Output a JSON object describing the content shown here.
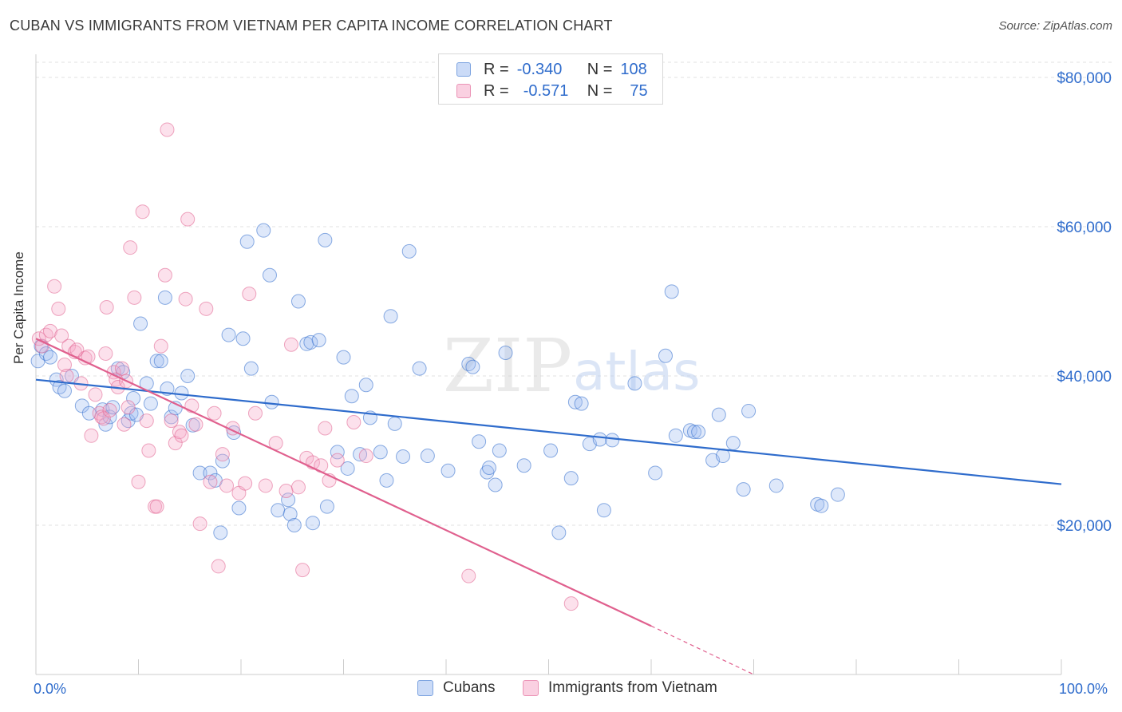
{
  "title": "CUBAN VS IMMIGRANTS FROM VIETNAM PER CAPITA INCOME CORRELATION CHART",
  "source": "Source: ZipAtlas.com",
  "watermark": {
    "zip": "ZIP",
    "atlas": "atlas"
  },
  "legend": {
    "r_label": "R =",
    "n_label": "N =",
    "rows": [
      {
        "name": "Cubans",
        "r": "-0.340",
        "n": "108",
        "color": "#2f6ccc"
      },
      {
        "name": "Immigrants from Vietnam",
        "r": "-0.571",
        "n": "75",
        "color": "#e0608e"
      }
    ]
  },
  "chart_data": {
    "type": "scatter",
    "title": "CUBAN VS IMMIGRANTS FROM VIETNAM PER CAPITA INCOME CORRELATION CHART",
    "xlabel": "",
    "ylabel": "Per Capita Income",
    "xlim": [
      0,
      100
    ],
    "ylim": [
      0,
      80000
    ],
    "x_tick_labels": [
      "0.0%",
      "100.0%"
    ],
    "y_ticks": [
      20000,
      40000,
      60000,
      80000
    ],
    "y_tick_labels": [
      "$20,000",
      "$40,000",
      "$60,000",
      "$80,000"
    ],
    "legend_position": "bottom",
    "series": [
      {
        "name": "Cubans",
        "color": "#2f6ccc",
        "fill": "rgba(160,190,240,0.35)",
        "trend": {
          "x0": 0,
          "y0": 39500,
          "x1": 100,
          "y1": 25500
        },
        "points": [
          [
            0.2,
            42000
          ],
          [
            0.5,
            44000
          ],
          [
            1,
            43000
          ],
          [
            1.4,
            42500
          ],
          [
            2,
            39500
          ],
          [
            2.3,
            38500
          ],
          [
            2.8,
            38000
          ],
          [
            3.5,
            40000
          ],
          [
            4.5,
            36000
          ],
          [
            5.2,
            35000
          ],
          [
            6.5,
            35500
          ],
          [
            6.8,
            33500
          ],
          [
            7.2,
            34500
          ],
          [
            7.5,
            35800
          ],
          [
            8,
            41000
          ],
          [
            8.5,
            40500
          ],
          [
            9,
            34000
          ],
          [
            9.3,
            35000
          ],
          [
            9.5,
            37000
          ],
          [
            9.8,
            34800
          ],
          [
            10.2,
            47000
          ],
          [
            10.8,
            39000
          ],
          [
            11.2,
            36300
          ],
          [
            11.8,
            42000
          ],
          [
            12.2,
            42000
          ],
          [
            12.6,
            50500
          ],
          [
            12.8,
            38300
          ],
          [
            13.2,
            34500
          ],
          [
            13.6,
            35700
          ],
          [
            14.2,
            37700
          ],
          [
            14.8,
            40000
          ],
          [
            15.3,
            33400
          ],
          [
            16,
            27000
          ],
          [
            17,
            27000
          ],
          [
            17.5,
            26000
          ],
          [
            18,
            19000
          ],
          [
            18.2,
            28600
          ],
          [
            18.8,
            45500
          ],
          [
            19.3,
            32400
          ],
          [
            19.8,
            22300
          ],
          [
            20.2,
            45000
          ],
          [
            20.6,
            58000
          ],
          [
            21,
            41000
          ],
          [
            22.2,
            59500
          ],
          [
            22.8,
            53500
          ],
          [
            23,
            36500
          ],
          [
            23.6,
            22000
          ],
          [
            24.6,
            23400
          ],
          [
            24.8,
            21500
          ],
          [
            25.2,
            20000
          ],
          [
            25.6,
            50000
          ],
          [
            26.4,
            44300
          ],
          [
            26.8,
            44500
          ],
          [
            27,
            20300
          ],
          [
            27.6,
            44800
          ],
          [
            28.2,
            58200
          ],
          [
            28.4,
            22500
          ],
          [
            29.4,
            29800
          ],
          [
            30,
            42500
          ],
          [
            30.4,
            27600
          ],
          [
            30.8,
            37300
          ],
          [
            31.6,
            29500
          ],
          [
            32.2,
            38800
          ],
          [
            32.6,
            34400
          ],
          [
            33.6,
            29800
          ],
          [
            34.2,
            26000
          ],
          [
            34.6,
            48000
          ],
          [
            35,
            33600
          ],
          [
            35.8,
            29200
          ],
          [
            36.4,
            56700
          ],
          [
            37.4,
            41000
          ],
          [
            38.2,
            29300
          ],
          [
            40.2,
            27300
          ],
          [
            42.2,
            41600
          ],
          [
            42.6,
            41200
          ],
          [
            43.2,
            31200
          ],
          [
            44,
            27100
          ],
          [
            44.2,
            27700
          ],
          [
            44.8,
            25400
          ],
          [
            45.2,
            30000
          ],
          [
            45.8,
            43100
          ],
          [
            47.6,
            28000
          ],
          [
            50.2,
            30000
          ],
          [
            51,
            19000
          ],
          [
            52.2,
            26300
          ],
          [
            52.6,
            36500
          ],
          [
            53.2,
            36300
          ],
          [
            54,
            30900
          ],
          [
            55,
            31500
          ],
          [
            55.4,
            22000
          ],
          [
            56.2,
            31400
          ],
          [
            58.4,
            39000
          ],
          [
            60.4,
            27000
          ],
          [
            61.4,
            42700
          ],
          [
            62,
            51300
          ],
          [
            62.4,
            32000
          ],
          [
            63.8,
            32700
          ],
          [
            64.2,
            32500
          ],
          [
            64.6,
            32500
          ],
          [
            66,
            28700
          ],
          [
            66.6,
            34800
          ],
          [
            67,
            29300
          ],
          [
            68,
            31000
          ],
          [
            69,
            24800
          ],
          [
            69.5,
            35300
          ],
          [
            72.2,
            25300
          ],
          [
            76.2,
            22800
          ],
          [
            76.6,
            22600
          ],
          [
            78.2,
            24100
          ]
        ]
      },
      {
        "name": "Immigrants from Vietnam",
        "color": "#e0608e",
        "fill": "rgba(245,170,200,0.35)",
        "trend": {
          "x0": 0,
          "y0": 45000,
          "x1": 60,
          "y1": 6500,
          "dash_x1": 70,
          "dash_y1": 0
        },
        "points": [
          [
            0.3,
            45000
          ],
          [
            0.6,
            44000
          ],
          [
            1,
            45500
          ],
          [
            1.4,
            46000
          ],
          [
            1.8,
            52000
          ],
          [
            2.2,
            49000
          ],
          [
            2.5,
            45400
          ],
          [
            2.8,
            41500
          ],
          [
            3,
            40000
          ],
          [
            3.2,
            44000
          ],
          [
            3.8,
            43200
          ],
          [
            4,
            43500
          ],
          [
            4.4,
            39000
          ],
          [
            4.8,
            42400
          ],
          [
            5.1,
            42600
          ],
          [
            5.4,
            32000
          ],
          [
            5.8,
            37500
          ],
          [
            6.2,
            35000
          ],
          [
            6.4,
            34500
          ],
          [
            6.6,
            34300
          ],
          [
            6.8,
            43000
          ],
          [
            6.9,
            49200
          ],
          [
            7.2,
            35400
          ],
          [
            7.6,
            40500
          ],
          [
            7.8,
            39500
          ],
          [
            8,
            38500
          ],
          [
            8.4,
            41000
          ],
          [
            8.6,
            33500
          ],
          [
            8.8,
            39300
          ],
          [
            9,
            35800
          ],
          [
            9.2,
            57200
          ],
          [
            9.6,
            50500
          ],
          [
            10,
            25800
          ],
          [
            10.4,
            62000
          ],
          [
            10.8,
            34000
          ],
          [
            11,
            30000
          ],
          [
            11.6,
            22500
          ],
          [
            11.8,
            22500
          ],
          [
            12.2,
            44000
          ],
          [
            12.6,
            53500
          ],
          [
            12.8,
            73000
          ],
          [
            13.2,
            34000
          ],
          [
            13.6,
            31000
          ],
          [
            14,
            32500
          ],
          [
            14.2,
            32000
          ],
          [
            14.6,
            50300
          ],
          [
            14.8,
            61000
          ],
          [
            15.2,
            36000
          ],
          [
            15.6,
            33500
          ],
          [
            16,
            20200
          ],
          [
            16.6,
            49000
          ],
          [
            17,
            25800
          ],
          [
            17.4,
            35000
          ],
          [
            17.8,
            14500
          ],
          [
            18.2,
            29500
          ],
          [
            18.6,
            25300
          ],
          [
            19.2,
            33000
          ],
          [
            19.8,
            24300
          ],
          [
            20.4,
            25600
          ],
          [
            20.8,
            51000
          ],
          [
            21.4,
            35000
          ],
          [
            22.4,
            25300
          ],
          [
            23.4,
            31000
          ],
          [
            24.4,
            24600
          ],
          [
            24.9,
            44200
          ],
          [
            25.6,
            25100
          ],
          [
            26,
            14000
          ],
          [
            26.4,
            29000
          ],
          [
            27,
            28400
          ],
          [
            27.8,
            28000
          ],
          [
            28.2,
            33000
          ],
          [
            28.6,
            26000
          ],
          [
            29.4,
            28700
          ],
          [
            31,
            33800
          ],
          [
            32.2,
            29300
          ],
          [
            42.2,
            13200
          ],
          [
            52.2,
            9500
          ]
        ]
      }
    ]
  }
}
